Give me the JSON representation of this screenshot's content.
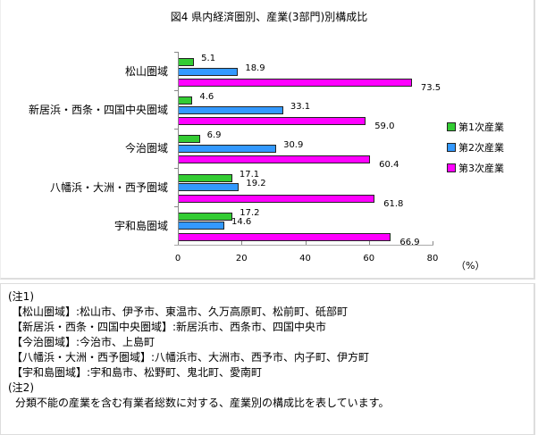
{
  "chart_data": {
    "type": "bar",
    "orientation": "horizontal",
    "title": "図4 県内経済圏別、産業(3部門)別構成比",
    "categories": [
      "松山圏域",
      "新居浜・西条・四国中央圏域",
      "今治圏域",
      "八幡浜・大洲・西予圏域",
      "宇和島圏域"
    ],
    "series": [
      {
        "name": "第1次産業",
        "color": "#33cc33",
        "values": [
          5.1,
          4.6,
          6.9,
          17.1,
          17.2
        ]
      },
      {
        "name": "第2次産業",
        "color": "#3399ff",
        "values": [
          18.9,
          33.1,
          30.9,
          19.2,
          14.6
        ]
      },
      {
        "name": "第3次産業",
        "color": "#ff00ff",
        "values": [
          73.5,
          59.0,
          60.4,
          61.8,
          66.9
        ]
      }
    ],
    "xlabel": "(%)",
    "ylabel": "",
    "xlim": [
      0,
      80
    ],
    "xticks": [
      "0",
      "20",
      "40",
      "60",
      "80"
    ],
    "grid": false,
    "legend_position": "right",
    "data_labels": true
  },
  "unit_label": "（%）",
  "notes": {
    "note1_heading": "(注1)",
    "note1_lines": [
      "【松山圏域】:松山市、伊予市、東温市、久万高原町、松前町、砥部町",
      "【新居浜・西条・四国中央圏域】:新居浜市、西条市、四国中央市",
      "【今治圏域】:今治市、上島町",
      "【八幡浜・大洲・西予圏域】:八幡浜市、大洲市、西予市、内子町、伊方町",
      "【宇和島圏域】:宇和島市、松野町、鬼北町、愛南町"
    ],
    "note2_heading": "(注2)",
    "note2_text": "分類不能の産業を含む有業者総数に対する、産業別の構成比を表しています。"
  }
}
